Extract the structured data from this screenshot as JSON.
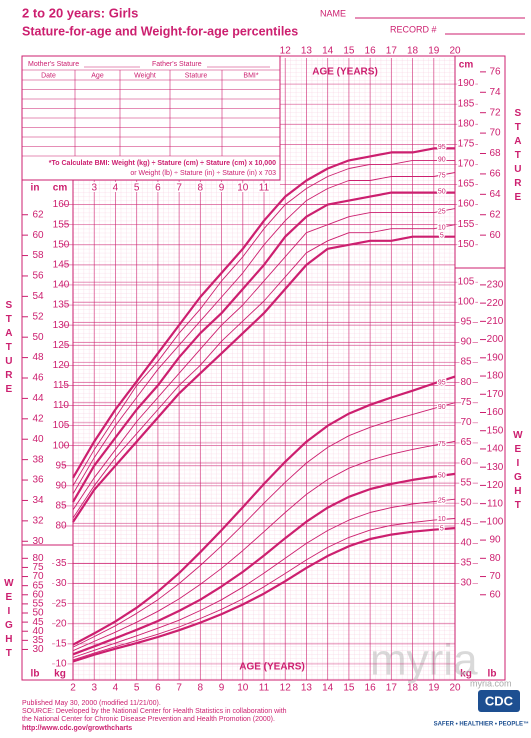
{
  "header": {
    "title": "2 to 20 years: Girls",
    "subtitle": "Stature-for-age and Weight-for-age percentiles",
    "name_label": "NAME",
    "record_label": "RECORD #"
  },
  "form": {
    "mother": "Mother's Stature",
    "father": "Father's Stature",
    "columns": [
      "Date",
      "Age",
      "Weight",
      "Stature",
      "BMI*"
    ],
    "bmi_note": [
      "*To Calculate BMI: Weight (kg) ÷ Stature (cm) ÷ Stature (cm) x 10,000",
      "or Weight (lb) ÷ Stature (in) ÷ Stature (in) x 703"
    ]
  },
  "chart_data": {
    "type": "line",
    "x_label": "AGE (YEARS)",
    "y_label": "STATURE",
    "y2_label": "WEIGHT",
    "y_unit": "cm",
    "y_unit_alt": "in",
    "y2_unit": "kg",
    "y2_unit_alt": "lb",
    "color": "#cc1f6f",
    "grid": true,
    "x": [
      2,
      3,
      4,
      5,
      6,
      7,
      8,
      9,
      10,
      11,
      12,
      13,
      14,
      15,
      16,
      17,
      18,
      19,
      20
    ],
    "xlim": [
      2,
      20
    ],
    "xticks": [
      2,
      3,
      4,
      5,
      6,
      7,
      8,
      9,
      10,
      11,
      12,
      13,
      14,
      15,
      16,
      17,
      18,
      19,
      20
    ],
    "xticks_top": [
      12,
      13,
      14,
      15,
      16,
      17,
      18,
      19,
      20
    ],
    "xticks_mid": [
      3,
      4,
      5,
      6,
      7,
      8,
      9,
      10,
      11
    ],
    "ylim": [
      80,
      195
    ],
    "yticks": [
      80,
      85,
      90,
      95,
      100,
      105,
      110,
      115,
      120,
      125,
      130,
      135,
      140,
      145,
      150,
      155,
      160
    ],
    "yticks_right": [
      150,
      155,
      160,
      165,
      170,
      175,
      180,
      185,
      190
    ],
    "yticks_in": [
      30,
      32,
      34,
      36,
      38,
      40,
      42,
      44,
      46,
      48,
      50,
      52,
      54,
      56,
      58,
      60,
      62
    ],
    "yticks_in_right": [
      60,
      62,
      64,
      66,
      68,
      70,
      72,
      74,
      76
    ],
    "y2lim": [
      7.5,
      115
    ],
    "y2ticks": [
      10,
      15,
      20,
      25,
      30,
      35
    ],
    "y2ticks_right": [
      30,
      35,
      40,
      45,
      50,
      55,
      60,
      65,
      70,
      75,
      80,
      85,
      90,
      95,
      100,
      105
    ],
    "y2ticks_lb": [
      30,
      35,
      40,
      45,
      50,
      55,
      60,
      65,
      70,
      75,
      80
    ],
    "y2ticks_lb_right": [
      60,
      70,
      80,
      90,
      100,
      110,
      120,
      130,
      140,
      150,
      160,
      170,
      180,
      190,
      200,
      210,
      220,
      230
    ],
    "series": [
      {
        "name": "5",
        "color": "#cc1f6f",
        "line_width": 2.2,
        "values": [
          81,
          89,
          95,
          101,
          107,
          113,
          118,
          123,
          128,
          133,
          139,
          145,
          149,
          150,
          151,
          151,
          152,
          152,
          152
        ]
      },
      {
        "name": "10",
        "color": "#cc1f6f",
        "line_width": 0.9,
        "values": [
          82,
          90,
          97,
          103,
          109,
          115,
          120,
          126,
          131,
          136,
          142,
          148,
          151,
          153,
          153,
          154,
          154,
          154,
          155
        ]
      },
      {
        "name": "25",
        "color": "#cc1f6f",
        "line_width": 0.9,
        "values": [
          84,
          92,
          99,
          106,
          112,
          118,
          124,
          130,
          135,
          141,
          147,
          153,
          155,
          157,
          158,
          158,
          158,
          158,
          159
        ]
      },
      {
        "name": "50",
        "color": "#cc1f6f",
        "line_width": 2.2,
        "values": [
          86,
          95,
          102,
          109,
          115,
          122,
          128,
          133,
          139,
          145,
          152,
          157,
          160,
          161,
          162,
          163,
          163,
          163,
          163
        ]
      },
      {
        "name": "75",
        "color": "#cc1f6f",
        "line_width": 0.9,
        "values": [
          88,
          97,
          105,
          112,
          119,
          125,
          131,
          137,
          143,
          150,
          156,
          161,
          164,
          166,
          166,
          167,
          167,
          167,
          168
        ]
      },
      {
        "name": "90",
        "color": "#cc1f6f",
        "line_width": 0.9,
        "values": [
          90,
          99,
          107,
          115,
          121,
          128,
          134,
          141,
          147,
          154,
          160,
          164,
          167,
          169,
          170,
          170,
          171,
          171,
          171
        ]
      },
      {
        "name": "95",
        "color": "#cc1f6f",
        "line_width": 2.2,
        "values": [
          92,
          101,
          109,
          116,
          123,
          130,
          137,
          143,
          149,
          156,
          162,
          166,
          169,
          171,
          172,
          173,
          173,
          174,
          174
        ]
      },
      {
        "name": "5",
        "axis": "y2",
        "color": "#cc1f6f",
        "line_width": 2.2,
        "values": [
          10.6,
          12.3,
          13.8,
          15.2,
          16.7,
          18.4,
          20.3,
          22.4,
          24.8,
          27.5,
          30.6,
          33.9,
          36.9,
          39.3,
          41.1,
          42.2,
          42.9,
          43.4,
          43.8
        ]
      },
      {
        "name": "10",
        "axis": "y2",
        "color": "#cc1f6f",
        "line_width": 0.9,
        "values": [
          11,
          12.7,
          14.3,
          15.8,
          17.4,
          19.2,
          21.3,
          23.6,
          26.2,
          29.2,
          32.5,
          35.9,
          39,
          41.5,
          43.3,
          44.5,
          45.2,
          45.8,
          46.2
        ]
      },
      {
        "name": "25",
        "axis": "y2",
        "color": "#cc1f6f",
        "line_width": 0.9,
        "values": [
          11.6,
          13.4,
          15.2,
          17,
          18.9,
          20.9,
          23.3,
          26,
          29.1,
          32.6,
          36.3,
          40,
          43.2,
          45.8,
          47.7,
          48.9,
          49.8,
          50.4,
          51
        ]
      },
      {
        "name": "50",
        "axis": "y2",
        "color": "#cc1f6f",
        "line_width": 2.2,
        "values": [
          12.4,
          14.4,
          16.4,
          18.5,
          20.7,
          23.2,
          26,
          29.3,
          32.9,
          37,
          41.3,
          45.4,
          48.9,
          51.6,
          53.5,
          54.8,
          55.8,
          56.6,
          57.3
        ]
      },
      {
        "name": "75",
        "axis": "y2",
        "color": "#cc1f6f",
        "line_width": 0.9,
        "values": [
          13.3,
          15.6,
          17.9,
          20.4,
          23.1,
          26.2,
          29.8,
          33.8,
          38.2,
          42.9,
          47.7,
          52.2,
          55.9,
          58.7,
          60.7,
          62.2,
          63.4,
          64.4,
          65.4
        ]
      },
      {
        "name": "90",
        "axis": "y2",
        "color": "#cc1f6f",
        "line_width": 0.9,
        "values": [
          14.2,
          16.8,
          19.5,
          22.6,
          26,
          30,
          34.5,
          39.4,
          44.6,
          50,
          55.2,
          60,
          63.9,
          66.8,
          68.9,
          70.6,
          72.1,
          73.6,
          75
        ]
      },
      {
        "name": "95",
        "axis": "y2",
        "color": "#cc1f6f",
        "line_width": 2.2,
        "values": [
          14.8,
          17.6,
          20.6,
          24,
          28,
          32.6,
          37.8,
          43.3,
          49,
          54.8,
          60.3,
          65.3,
          69.3,
          72.3,
          74.5,
          76.3,
          78,
          79.8,
          81.5
        ]
      }
    ]
  },
  "footer": {
    "lines": [
      "Published May 30, 2000 (modified 11/21/00).",
      "SOURCE: Developed by the National Center for Health Statistics in collaboration with",
      "the National Center for Chronic Disease Prevention and Health Promotion (2000)."
    ],
    "url": "http://www.cdc.gov/growthcharts",
    "logo": "CDC",
    "tagline": "SAFER • HEALTHIER • PEOPLE™"
  },
  "watermark": {
    "big": "myria",
    "small": "myria.com"
  }
}
